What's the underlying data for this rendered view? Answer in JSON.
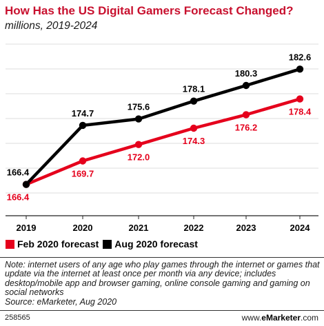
{
  "title": "How Has the US Digital Gamers Forecast Changed?",
  "subtitle": "millions, 2019-2024",
  "chart_data": {
    "type": "line",
    "x": [
      "2019",
      "2020",
      "2021",
      "2022",
      "2023",
      "2024"
    ],
    "series": [
      {
        "name": "Feb 2020 forecast",
        "color": "#e5001c",
        "values": [
          166.4,
          169.7,
          172.0,
          174.3,
          176.2,
          178.4
        ],
        "labels": [
          "166.4",
          "169.7",
          "172.0",
          "174.3",
          "176.2",
          "178.4"
        ]
      },
      {
        "name": "Aug 2020 forecast",
        "color": "#000000",
        "values": [
          166.4,
          174.7,
          175.6,
          178.1,
          180.3,
          182.6
        ],
        "labels": [
          "166.4",
          "174.7",
          "175.6",
          "178.1",
          "180.3",
          "182.6"
        ]
      }
    ],
    "grid": true,
    "legend_position": "bottom-left"
  },
  "note": "Note: internet users of any age who play games through the internet or games that update via the internet at least once per month via any device; includes desktop/mobile app and browser gaming, online console gaming and gaming on social networks",
  "source": "Source: eMarketer, Aug 2020",
  "chart_id": "258565",
  "brand": {
    "prefix": "www.",
    "name": "eMarketer",
    "suffix": ".com"
  }
}
